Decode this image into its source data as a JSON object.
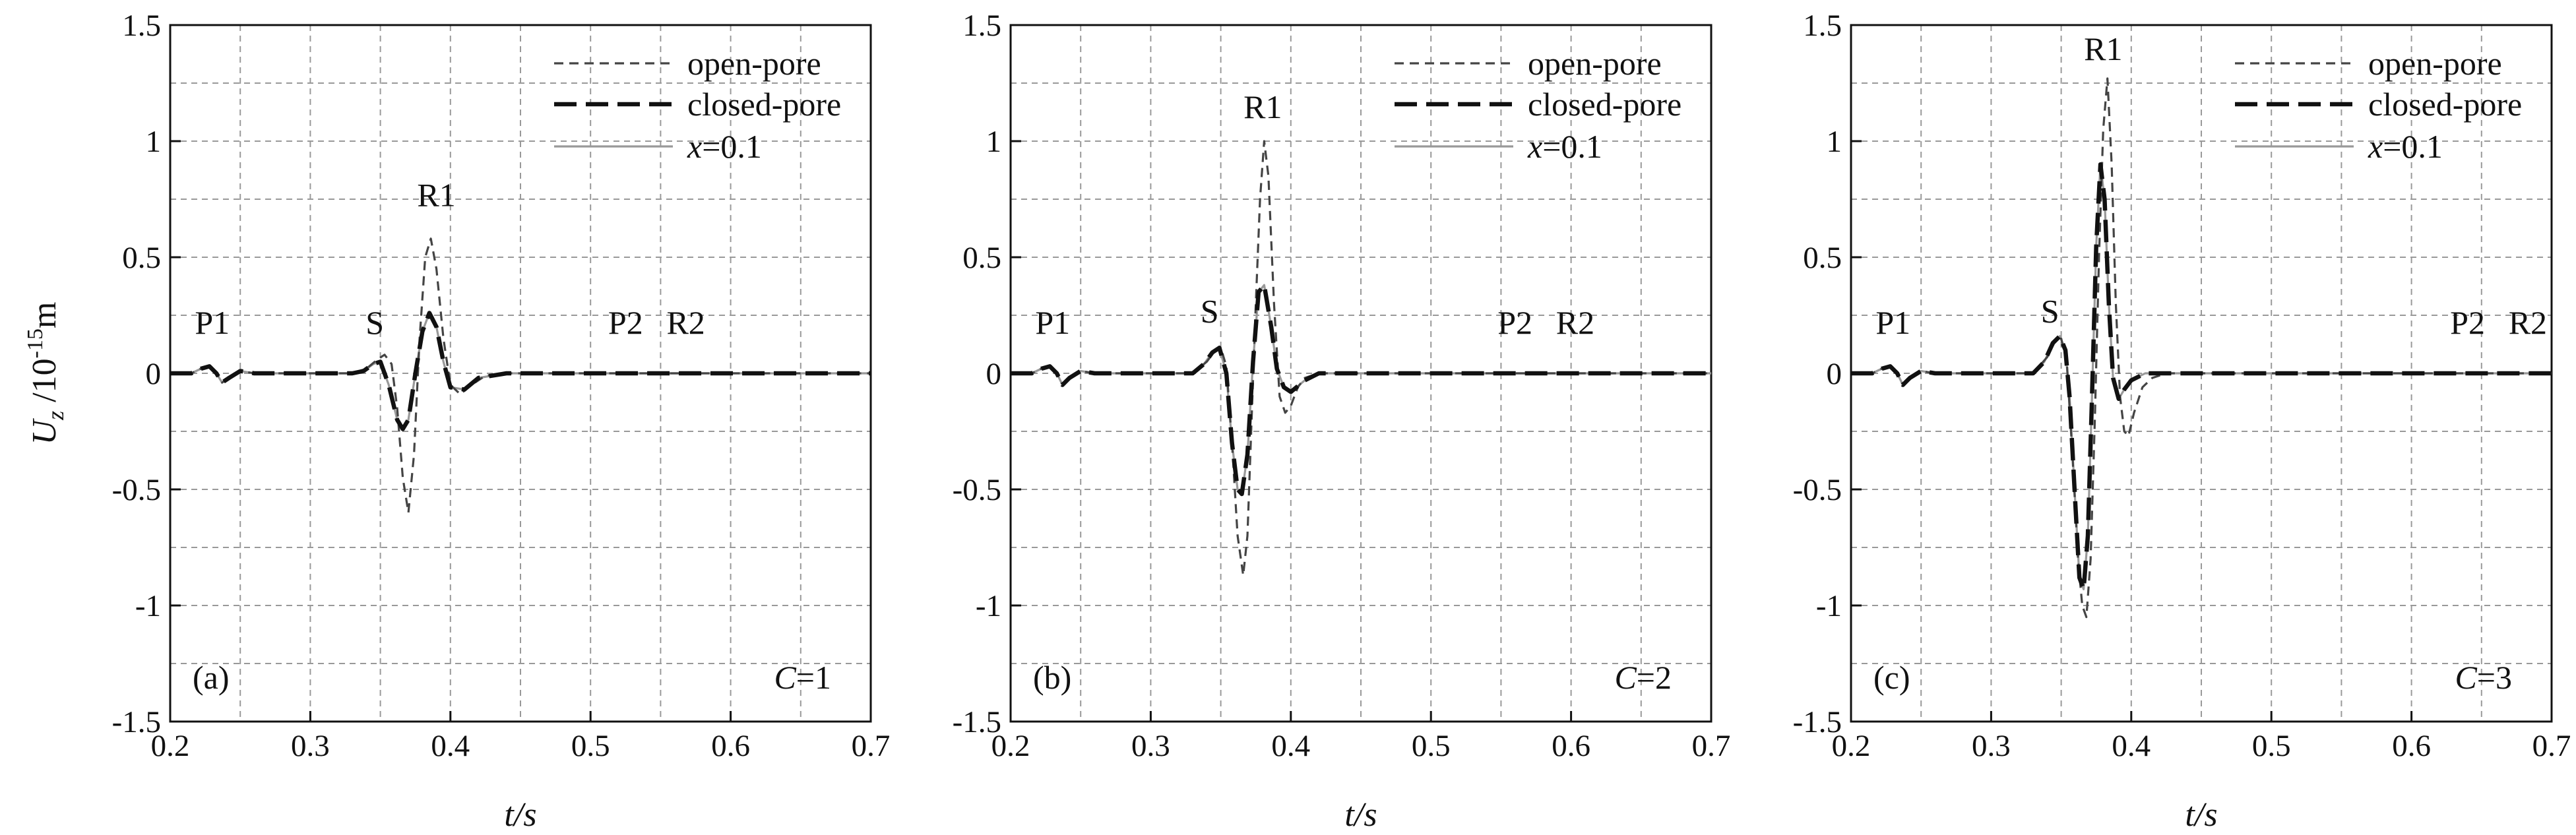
{
  "y_axis_label": {
    "symbol": "U",
    "subscript": "z",
    "unit": " /10",
    "exp": "-15",
    "tail": "m"
  },
  "legend": [
    "open-pore",
    "closed-pore",
    "x=0.1"
  ],
  "colors": {
    "open_pore": "#444444",
    "closed_pore": "#111111",
    "x01": "#999999",
    "grid": "#999999"
  },
  "chart_data": [
    {
      "type": "line",
      "panel": "(a)",
      "case": "C=1",
      "xlabel": "t/s",
      "ylabel": "Uz /10-15m",
      "xlim": [
        0.2,
        0.7
      ],
      "ylim": [
        -1.5,
        1.5
      ],
      "x_ticks": [
        "0.2",
        "0.3",
        "0.4",
        "0.5",
        "0.6",
        "0.7"
      ],
      "y_ticks": [
        "1.5",
        "1",
        "0.5",
        "0",
        "-0.5",
        "-1",
        "-1.5"
      ],
      "grid": true,
      "legend_position": "top-right",
      "annotations": [
        {
          "text": "P1",
          "x": 0.23,
          "y": 0.17
        },
        {
          "text": "S",
          "x": 0.346,
          "y": 0.17
        },
        {
          "text": "R1",
          "x": 0.39,
          "y": 0.72
        },
        {
          "text": "P2",
          "x": 0.525,
          "y": 0.17
        },
        {
          "text": "R2",
          "x": 0.568,
          "y": 0.17
        }
      ],
      "series": [
        {
          "name": "open-pore",
          "x": [
            0.2,
            0.215,
            0.222,
            0.228,
            0.233,
            0.237,
            0.242,
            0.25,
            0.26,
            0.33,
            0.34,
            0.348,
            0.353,
            0.358,
            0.362,
            0.366,
            0.37,
            0.374,
            0.378,
            0.382,
            0.386,
            0.39,
            0.395,
            0.4,
            0.407,
            0.415,
            0.425,
            0.44,
            0.7
          ],
          "y": [
            0,
            0,
            0.02,
            0.03,
            0,
            -0.04,
            -0.02,
            0.01,
            0,
            0,
            0.02,
            0.06,
            0.08,
            0.04,
            -0.15,
            -0.45,
            -0.6,
            -0.35,
            0.15,
            0.5,
            0.58,
            0.45,
            0.15,
            -0.05,
            -0.09,
            -0.05,
            -0.01,
            0,
            0
          ]
        },
        {
          "name": "closed-pore",
          "x": [
            0.2,
            0.215,
            0.222,
            0.228,
            0.233,
            0.237,
            0.242,
            0.25,
            0.26,
            0.33,
            0.338,
            0.345,
            0.35,
            0.356,
            0.362,
            0.366,
            0.37,
            0.375,
            0.38,
            0.385,
            0.39,
            0.395,
            0.4,
            0.41,
            0.42,
            0.44,
            0.7
          ],
          "y": [
            0,
            0,
            0.02,
            0.03,
            0,
            -0.04,
            -0.02,
            0.01,
            0,
            0,
            0.01,
            0.04,
            0.05,
            -0.05,
            -0.2,
            -0.24,
            -0.2,
            0,
            0.18,
            0.26,
            0.2,
            0.05,
            -0.06,
            -0.07,
            -0.02,
            0,
            0
          ]
        },
        {
          "name": "x=0.1",
          "x": [
            0.2,
            0.215,
            0.222,
            0.228,
            0.233,
            0.237,
            0.242,
            0.25,
            0.26,
            0.33,
            0.338,
            0.345,
            0.35,
            0.356,
            0.362,
            0.366,
            0.37,
            0.375,
            0.38,
            0.385,
            0.39,
            0.395,
            0.4,
            0.41,
            0.42,
            0.44,
            0.7
          ],
          "y": [
            0,
            0,
            0.02,
            0.03,
            0,
            -0.04,
            -0.02,
            0.01,
            0,
            0,
            0.01,
            0.04,
            0.05,
            -0.05,
            -0.2,
            -0.24,
            -0.2,
            0,
            0.18,
            0.26,
            0.2,
            0.05,
            -0.06,
            -0.07,
            -0.02,
            0,
            0
          ]
        }
      ]
    },
    {
      "type": "line",
      "panel": "(b)",
      "case": "C=2",
      "xlabel": "t/s",
      "ylabel": "Uz /10-15m",
      "xlim": [
        0.2,
        0.7
      ],
      "ylim": [
        -1.5,
        1.5
      ],
      "x_ticks": [
        "0.2",
        "0.3",
        "0.4",
        "0.5",
        "0.6",
        "0.7"
      ],
      "y_ticks": [
        "1.5",
        "1",
        "0.5",
        "0",
        "-0.5",
        "-1",
        "-1.5"
      ],
      "grid": true,
      "legend_position": "top-right",
      "annotations": [
        {
          "text": "P1",
          "x": 0.23,
          "y": 0.17
        },
        {
          "text": "S",
          "x": 0.342,
          "y": 0.22
        },
        {
          "text": "R1",
          "x": 0.38,
          "y": 1.1
        },
        {
          "text": "P2",
          "x": 0.56,
          "y": 0.17
        },
        {
          "text": "R2",
          "x": 0.603,
          "y": 0.17
        }
      ],
      "series": [
        {
          "name": "open-pore",
          "x": [
            0.2,
            0.215,
            0.222,
            0.228,
            0.233,
            0.237,
            0.242,
            0.25,
            0.26,
            0.33,
            0.34,
            0.345,
            0.35,
            0.354,
            0.358,
            0.362,
            0.366,
            0.369,
            0.372,
            0.375,
            0.378,
            0.381,
            0.384,
            0.388,
            0.392,
            0.396,
            0.4,
            0.405,
            0.41,
            0.42,
            0.43,
            0.44,
            0.7
          ],
          "y": [
            0,
            0,
            0.02,
            0.03,
            0,
            -0.05,
            -0.02,
            0.01,
            0,
            0,
            0.05,
            0.09,
            0.11,
            0.03,
            -0.3,
            -0.7,
            -0.87,
            -0.7,
            -0.2,
            0.3,
            0.75,
            1.0,
            0.85,
            0.3,
            -0.1,
            -0.17,
            -0.14,
            -0.06,
            -0.02,
            0,
            0,
            0,
            0
          ]
        },
        {
          "name": "closed-pore",
          "x": [
            0.2,
            0.215,
            0.222,
            0.228,
            0.233,
            0.237,
            0.242,
            0.25,
            0.26,
            0.33,
            0.338,
            0.344,
            0.349,
            0.354,
            0.358,
            0.362,
            0.365,
            0.369,
            0.373,
            0.377,
            0.381,
            0.386,
            0.39,
            0.395,
            0.4,
            0.41,
            0.42,
            0.44,
            0.7
          ],
          "y": [
            0,
            0,
            0.02,
            0.03,
            0,
            -0.05,
            -0.02,
            0.01,
            0,
            0,
            0.04,
            0.09,
            0.11,
            0.0,
            -0.3,
            -0.5,
            -0.52,
            -0.35,
            0.05,
            0.35,
            0.38,
            0.2,
            0.02,
            -0.06,
            -0.08,
            -0.03,
            0,
            0,
            0
          ]
        },
        {
          "name": "x=0.1",
          "x": [
            0.2,
            0.215,
            0.222,
            0.228,
            0.233,
            0.237,
            0.242,
            0.25,
            0.26,
            0.33,
            0.338,
            0.344,
            0.349,
            0.354,
            0.358,
            0.362,
            0.365,
            0.369,
            0.373,
            0.377,
            0.381,
            0.386,
            0.39,
            0.395,
            0.4,
            0.41,
            0.42,
            0.44,
            0.7
          ],
          "y": [
            0,
            0,
            0.02,
            0.03,
            0,
            -0.05,
            -0.02,
            0.01,
            0,
            0,
            0.04,
            0.09,
            0.11,
            0.0,
            -0.3,
            -0.5,
            -0.52,
            -0.35,
            0.05,
            0.35,
            0.38,
            0.2,
            0.02,
            -0.06,
            -0.08,
            -0.03,
            0,
            0,
            0
          ]
        }
      ]
    },
    {
      "type": "line",
      "panel": "(c)",
      "case": "C=3",
      "xlabel": "t/s",
      "ylabel": "Uz /10-15m",
      "xlim": [
        0.2,
        0.7
      ],
      "ylim": [
        -1.5,
        1.5
      ],
      "x_ticks": [
        "0.2",
        "0.3",
        "0.4",
        "0.5",
        "0.6",
        "0.7"
      ],
      "y_ticks": [
        "1.5",
        "1",
        "0.5",
        "0",
        "-0.5",
        "-1",
        "-1.5"
      ],
      "grid": true,
      "legend_position": "top-right",
      "annotations": [
        {
          "text": "P1",
          "x": 0.23,
          "y": 0.17
        },
        {
          "text": "S",
          "x": 0.342,
          "y": 0.22
        },
        {
          "text": "R1",
          "x": 0.38,
          "y": 1.35
        },
        {
          "text": "P2",
          "x": 0.64,
          "y": 0.17
        },
        {
          "text": "R2",
          "x": 0.683,
          "y": 0.17
        }
      ],
      "series": [
        {
          "name": "open-pore",
          "x": [
            0.2,
            0.215,
            0.222,
            0.228,
            0.233,
            0.237,
            0.242,
            0.25,
            0.26,
            0.33,
            0.34,
            0.345,
            0.35,
            0.354,
            0.358,
            0.362,
            0.365,
            0.368,
            0.371,
            0.374,
            0.377,
            0.38,
            0.383,
            0.386,
            0.389,
            0.392,
            0.395,
            0.398,
            0.402,
            0.408,
            0.415,
            0.425,
            0.44,
            0.7
          ],
          "y": [
            0,
            0,
            0.02,
            0.03,
            0,
            -0.05,
            -0.02,
            0.01,
            0,
            0,
            0.07,
            0.13,
            0.15,
            0.05,
            -0.35,
            -0.8,
            -1.0,
            -1.05,
            -0.8,
            -0.2,
            0.5,
            1.05,
            1.27,
            0.9,
            0.3,
            -0.1,
            -0.25,
            -0.27,
            -0.17,
            -0.06,
            -0.02,
            0,
            0,
            0
          ]
        },
        {
          "name": "closed-pore",
          "x": [
            0.2,
            0.215,
            0.222,
            0.228,
            0.233,
            0.237,
            0.242,
            0.25,
            0.26,
            0.33,
            0.338,
            0.344,
            0.349,
            0.353,
            0.356,
            0.36,
            0.363,
            0.366,
            0.369,
            0.372,
            0.375,
            0.378,
            0.381,
            0.384,
            0.387,
            0.391,
            0.395,
            0.4,
            0.41,
            0.42,
            0.44,
            0.7
          ],
          "y": [
            0,
            0,
            0.02,
            0.03,
            0,
            -0.05,
            -0.02,
            0.01,
            0,
            0,
            0.05,
            0.13,
            0.16,
            0.1,
            -0.1,
            -0.55,
            -0.88,
            -0.93,
            -0.7,
            -0.1,
            0.55,
            0.9,
            0.75,
            0.3,
            -0.02,
            -0.11,
            -0.07,
            -0.03,
            0,
            0,
            0,
            0
          ]
        },
        {
          "name": "x=0.1",
          "x": [
            0.2,
            0.215,
            0.222,
            0.228,
            0.233,
            0.237,
            0.242,
            0.25,
            0.26,
            0.33,
            0.338,
            0.344,
            0.349,
            0.353,
            0.356,
            0.36,
            0.363,
            0.366,
            0.369,
            0.372,
            0.375,
            0.378,
            0.381,
            0.384,
            0.387,
            0.391,
            0.395,
            0.4,
            0.41,
            0.42,
            0.44,
            0.7
          ],
          "y": [
            0,
            0,
            0.02,
            0.03,
            0,
            -0.05,
            -0.02,
            0.01,
            0,
            0,
            0.05,
            0.13,
            0.16,
            0.1,
            -0.1,
            -0.55,
            -0.88,
            -0.93,
            -0.7,
            -0.1,
            0.55,
            0.9,
            0.75,
            0.3,
            -0.02,
            -0.11,
            -0.07,
            -0.03,
            0,
            0,
            0,
            0
          ]
        }
      ]
    }
  ]
}
